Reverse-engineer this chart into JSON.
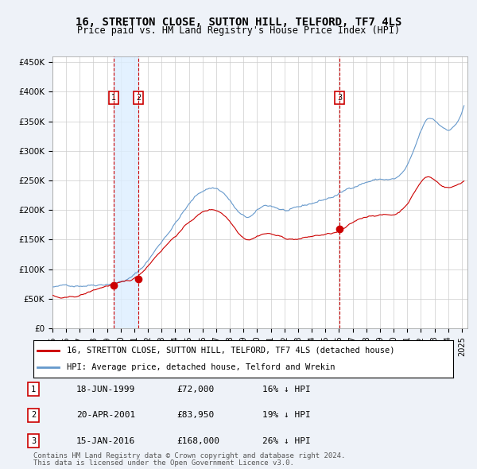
{
  "title": "16, STRETTON CLOSE, SUTTON HILL, TELFORD, TF7 4LS",
  "subtitle": "Price paid vs. HM Land Registry's House Price Index (HPI)",
  "transactions": [
    {
      "label": "1",
      "date": "18-JUN-1999",
      "price": 72000,
      "pct": "16%",
      "dir": "↓"
    },
    {
      "label": "2",
      "date": "20-APR-2001",
      "price": 83950,
      "pct": "19%",
      "dir": "↓"
    },
    {
      "label": "3",
      "date": "15-JAN-2016",
      "price": 168000,
      "pct": "26%",
      "dir": "↓"
    }
  ],
  "legend_line1": "16, STRETTON CLOSE, SUTTON HILL, TELFORD, TF7 4LS (detached house)",
  "legend_line2": "HPI: Average price, detached house, Telford and Wrekin",
  "footer1": "Contains HM Land Registry data © Crown copyright and database right 2024.",
  "footer2": "This data is licensed under the Open Government Licence v3.0.",
  "hpi_color": "#6699cc",
  "price_color": "#cc0000",
  "vline_color": "#cc0000",
  "shade_color": "#ddeeff",
  "grid_color": "#cccccc",
  "bg_color": "#eef2f8",
  "plot_bg": "#ffffff",
  "ylim": [
    0,
    460000
  ],
  "yticks": [
    0,
    50000,
    100000,
    150000,
    200000,
    250000,
    300000,
    350000,
    400000,
    450000
  ],
  "ylabel_fmt": [
    "£0",
    "£50K",
    "£100K",
    "£150K",
    "£200K",
    "£250K",
    "£300K",
    "£350K",
    "£400K",
    "£450K"
  ]
}
